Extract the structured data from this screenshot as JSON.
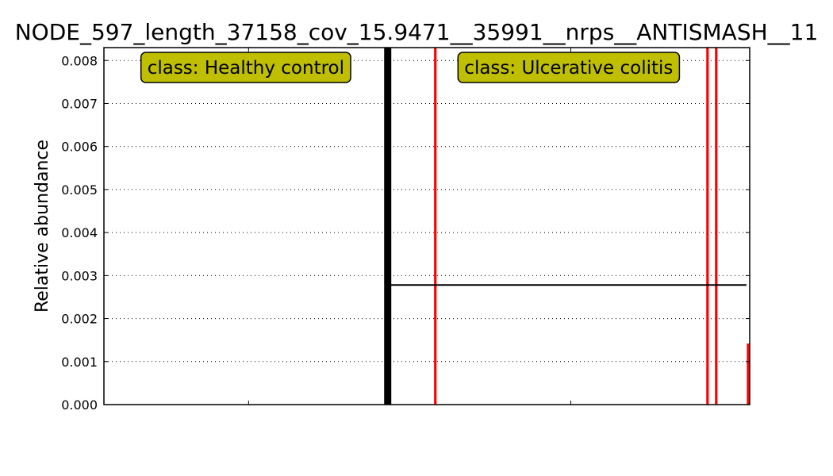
{
  "chart_data": {
    "type": "bar",
    "title": "NODE_597_length_37158_cov_15.9471__35991__nrps__ANTISMASH__11",
    "ylabel": "Relative abundance",
    "ylim": [
      0,
      0.0083
    ],
    "yticks": [
      "0.000",
      "0.001",
      "0.002",
      "0.003",
      "0.004",
      "0.005",
      "0.006",
      "0.007",
      "0.008"
    ],
    "grid": "horizontal dotted",
    "n_samples": 223,
    "classes": [
      {
        "name": "class: Healthy control",
        "start": 0,
        "end": 98,
        "mean": 0.0,
        "box_color": "#bfbf00"
      },
      {
        "name": "class: Ulcerative colitis",
        "start": 98,
        "end": 223,
        "mean": 0.00278,
        "box_color": "#bfbf00"
      }
    ],
    "bar_color": "#ff0000",
    "bars": [
      {
        "sample": 114,
        "value": 0.0083
      },
      {
        "sample": 208,
        "value": 0.0083
      },
      {
        "sample": 211,
        "value": 0.0083
      },
      {
        "sample": 222,
        "value": 0.00142
      }
    ]
  }
}
